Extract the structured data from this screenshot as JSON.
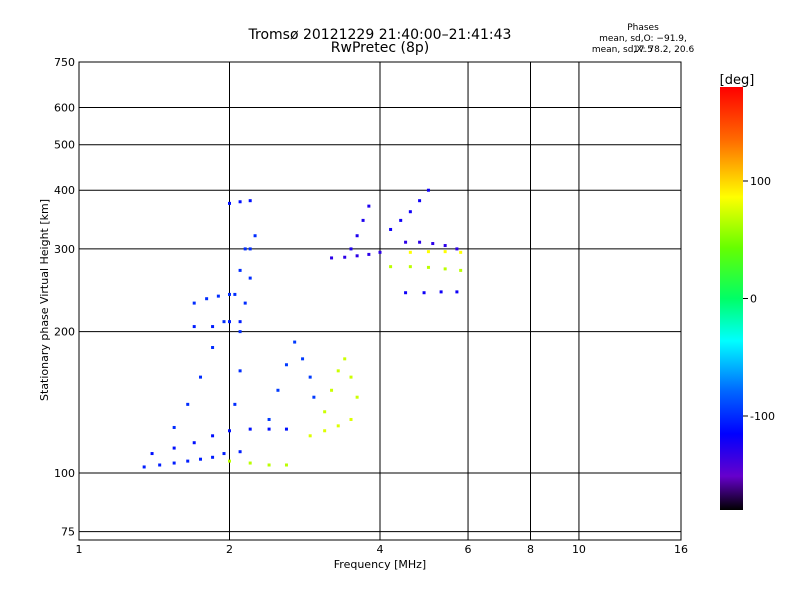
{
  "chart_data": {
    "type": "scatter",
    "title": "Tromsø 20121229 21:40:00–21:41:43",
    "subtitle": "RwPretec (8p)",
    "xlabel": "Frequency [MHz]",
    "ylabel": "Stationary phase Virtual Height [km]",
    "x_scale": "log",
    "y_scale": "log",
    "xlim": [
      1,
      16
    ],
    "ylim": [
      72,
      750
    ],
    "x_ticks": [
      1,
      2,
      4,
      6,
      8,
      10,
      16
    ],
    "y_ticks": [
      75,
      100,
      200,
      300,
      400,
      500,
      600,
      750
    ],
    "grid": true,
    "colorbar": {
      "label": "[deg]",
      "range": [
        -180,
        180
      ],
      "ticks": [
        100,
        0,
        -100
      ],
      "colors": [
        "#ff0000",
        "#ff8800",
        "#ffff00",
        "#00ff00",
        "#00ffff",
        "#0000ff",
        "#8800ff",
        "#000000"
      ]
    },
    "annotation": {
      "heading": "Phases",
      "line1": "mean, sd,O: −91.9, 17.5",
      "line2": "mean, sd,X:  78.2, 20.6"
    },
    "traces": [
      {
        "phase": -105,
        "points": [
          [
            1.35,
            103
          ],
          [
            1.45,
            104
          ],
          [
            1.55,
            105
          ],
          [
            1.65,
            106
          ],
          [
            1.75,
            107
          ],
          [
            1.85,
            108
          ],
          [
            1.95,
            110
          ],
          [
            2.1,
            111
          ]
        ]
      },
      {
        "phase": -110,
        "points": [
          [
            1.4,
            110
          ],
          [
            1.55,
            113
          ],
          [
            1.7,
            116
          ],
          [
            1.85,
            120
          ],
          [
            2.0,
            123
          ],
          [
            2.2,
            124
          ],
          [
            2.4,
            124
          ],
          [
            2.6,
            124
          ]
        ]
      },
      {
        "phase": -100,
        "points": [
          [
            1.55,
            125
          ],
          [
            1.65,
            140
          ],
          [
            1.75,
            160
          ],
          [
            1.85,
            185
          ],
          [
            1.95,
            210
          ],
          [
            2.05,
            240
          ],
          [
            2.1,
            270
          ],
          [
            2.15,
            300
          ]
        ]
      },
      {
        "phase": -100,
        "points": [
          [
            2.05,
            140
          ],
          [
            2.1,
            165
          ],
          [
            2.1,
            200
          ],
          [
            2.15,
            230
          ],
          [
            2.2,
            260
          ],
          [
            2.2,
            300
          ],
          [
            2.25,
            320
          ]
        ]
      },
      {
        "phase": -95,
        "points": [
          [
            2.4,
            130
          ],
          [
            2.5,
            150
          ],
          [
            2.6,
            170
          ],
          [
            2.7,
            190
          ],
          [
            2.8,
            175
          ],
          [
            2.9,
            160
          ],
          [
            2.95,
            145
          ]
        ]
      },
      {
        "phase": -100,
        "points": [
          [
            1.7,
            230
          ],
          [
            1.8,
            235
          ],
          [
            1.9,
            238
          ],
          [
            2.0,
            240
          ]
        ]
      },
      {
        "phase": -105,
        "points": [
          [
            1.7,
            205
          ],
          [
            1.85,
            205
          ],
          [
            2.0,
            210
          ],
          [
            2.1,
            210
          ]
        ]
      },
      {
        "phase": -110,
        "points": [
          [
            2.0,
            375
          ],
          [
            2.1,
            378
          ],
          [
            2.2,
            380
          ]
        ]
      },
      {
        "phase": 70,
        "points": [
          [
            2.0,
            106
          ],
          [
            2.2,
            105
          ],
          [
            2.4,
            104
          ],
          [
            2.6,
            104
          ]
        ]
      },
      {
        "phase": 80,
        "points": [
          [
            2.9,
            120
          ],
          [
            3.1,
            123
          ],
          [
            3.3,
            126
          ],
          [
            3.5,
            130
          ]
        ]
      },
      {
        "phase": 75,
        "points": [
          [
            3.1,
            135
          ],
          [
            3.2,
            150
          ],
          [
            3.3,
            165
          ],
          [
            3.4,
            175
          ],
          [
            3.5,
            160
          ],
          [
            3.6,
            145
          ]
        ]
      },
      {
        "phase": -130,
        "points": [
          [
            3.2,
            287
          ],
          [
            3.4,
            288
          ],
          [
            3.6,
            290
          ],
          [
            3.8,
            292
          ],
          [
            4.0,
            295
          ]
        ]
      },
      {
        "phase": -125,
        "points": [
          [
            3.5,
            300
          ],
          [
            3.6,
            320
          ],
          [
            3.7,
            345
          ],
          [
            3.8,
            370
          ]
        ]
      },
      {
        "phase": -120,
        "points": [
          [
            4.2,
            330
          ],
          [
            4.4,
            345
          ],
          [
            4.6,
            360
          ],
          [
            4.8,
            380
          ],
          [
            5.0,
            400
          ]
        ]
      },
      {
        "phase": -130,
        "points": [
          [
            4.5,
            310
          ],
          [
            4.8,
            310
          ],
          [
            5.1,
            308
          ],
          [
            5.4,
            305
          ],
          [
            5.7,
            300
          ]
        ]
      },
      {
        "phase": -120,
        "points": [
          [
            4.5,
            242
          ],
          [
            4.9,
            242
          ],
          [
            5.3,
            243
          ],
          [
            5.7,
            243
          ]
        ]
      },
      {
        "phase": 70,
        "points": [
          [
            4.2,
            275
          ],
          [
            4.6,
            275
          ],
          [
            5.0,
            274
          ],
          [
            5.4,
            272
          ],
          [
            5.8,
            270
          ]
        ]
      },
      {
        "phase": 90,
        "points": [
          [
            4.6,
            295
          ],
          [
            5.0,
            296
          ],
          [
            5.4,
            296
          ],
          [
            5.8,
            295
          ]
        ]
      }
    ]
  }
}
